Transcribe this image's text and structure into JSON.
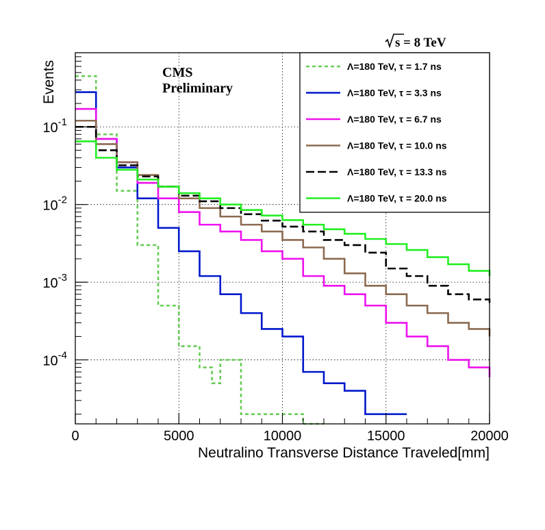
{
  "chart_data": {
    "type": "line",
    "step": true,
    "xlabel": "Neutralino Transverse Distance Traveled[mm]",
    "ylabel": "Events",
    "xlim": [
      0,
      20000
    ],
    "ylim": [
      1.5e-05,
      0.9
    ],
    "ylog": true,
    "grid": true,
    "legend_position": "top-right",
    "x_ticks": [
      "0",
      "5000",
      "10000",
      "15000",
      "20000"
    ],
    "y_ticks": [
      {
        "value": 0.1,
        "base": "10",
        "exp": "-1"
      },
      {
        "value": 0.01,
        "base": "10",
        "exp": "-2"
      },
      {
        "value": 0.001,
        "base": "10",
        "exp": "-3"
      },
      {
        "value": 0.0001,
        "base": "10",
        "exp": "-4"
      }
    ],
    "annotations": {
      "experiment": "CMS",
      "status": "Preliminary",
      "energy_sqrt": "s",
      "energy_text": " = 8 TeV"
    },
    "series": [
      {
        "name": "Λ=180 TeV, τ = 1.7 ns",
        "color": "#66cc55",
        "dash": "5,4",
        "x": [
          0,
          1000,
          2000,
          3000,
          4000,
          5000,
          6000,
          6600,
          7000,
          8000,
          9000,
          10000,
          11000
        ],
        "y": [
          0.45,
          0.08,
          0.015,
          0.003,
          0.0005,
          0.00015,
          8e-05,
          5e-05,
          0.0001,
          2e-05,
          2e-05,
          2e-05,
          1.5e-05
        ]
      },
      {
        "name": "Λ=180 TeV, τ = 3.3 ns",
        "color": "#0018cc",
        "dash": "",
        "x": [
          0,
          1000,
          2000,
          3000,
          4000,
          5000,
          6000,
          7000,
          8000,
          9000,
          10000,
          11000,
          12000,
          13000,
          14000,
          15000
        ],
        "y": [
          0.28,
          0.07,
          0.03,
          0.012,
          0.005,
          0.0025,
          0.0012,
          0.0007,
          0.0004,
          0.00025,
          0.0002,
          7e-05,
          5e-05,
          4e-05,
          2e-05,
          2e-05
        ]
      },
      {
        "name": "Λ=180 TeV, τ = 6.7 ns",
        "color": "#ee11ee",
        "dash": "",
        "x": [
          0,
          1000,
          2000,
          3000,
          4000,
          5000,
          6000,
          7000,
          8000,
          9000,
          10000,
          11000,
          12000,
          13000,
          14000,
          15000,
          16000,
          17000,
          18000,
          19000,
          20000
        ],
        "y": [
          0.17,
          0.07,
          0.035,
          0.019,
          0.012,
          0.008,
          0.0055,
          0.0045,
          0.0035,
          0.0025,
          0.002,
          0.0012,
          0.0009,
          0.0007,
          0.0005,
          0.0003,
          0.0002,
          0.00015,
          0.0001,
          8e-05,
          6e-05
        ]
      },
      {
        "name": "Λ=180 TeV, τ = 10.0 ns",
        "color": "#8b6a50",
        "dash": "",
        "x": [
          0,
          1000,
          2000,
          3000,
          4000,
          5000,
          6000,
          7000,
          8000,
          9000,
          10000,
          11000,
          12000,
          13000,
          14000,
          15000,
          16000,
          17000,
          18000,
          19000,
          20000
        ],
        "y": [
          0.12,
          0.06,
          0.035,
          0.024,
          0.017,
          0.012,
          0.009,
          0.007,
          0.0055,
          0.0045,
          0.0035,
          0.0028,
          0.002,
          0.0013,
          0.0009,
          0.0007,
          0.0005,
          0.0004,
          0.0003,
          0.00025,
          0.0002
        ]
      },
      {
        "name": "Λ=180 TeV, τ = 13.3 ns",
        "color": "#000000",
        "dash": "12,5",
        "x": [
          0,
          1000,
          2000,
          3000,
          4000,
          5000,
          6000,
          7000,
          8000,
          9000,
          10000,
          11000,
          12000,
          13000,
          14000,
          15000,
          16000,
          17000,
          18000,
          19000,
          20000
        ],
        "y": [
          0.1,
          0.05,
          0.032,
          0.023,
          0.017,
          0.013,
          0.011,
          0.009,
          0.0075,
          0.0062,
          0.0052,
          0.0045,
          0.0035,
          0.003,
          0.0024,
          0.0015,
          0.0012,
          0.0009,
          0.0007,
          0.0006,
          0.0005
        ]
      },
      {
        "name": "Λ=180 TeV, τ = 20.0 ns",
        "color": "#22ee22",
        "dash": "",
        "x": [
          0,
          1000,
          2000,
          3000,
          4000,
          5000,
          6000,
          7000,
          8000,
          9000,
          10000,
          11000,
          12000,
          13000,
          14000,
          15000,
          16000,
          17000,
          18000,
          19000,
          20000
        ],
        "y": [
          0.065,
          0.04,
          0.028,
          0.021,
          0.017,
          0.014,
          0.012,
          0.01,
          0.0085,
          0.0072,
          0.0063,
          0.0055,
          0.0048,
          0.0042,
          0.0036,
          0.0031,
          0.0026,
          0.0021,
          0.0017,
          0.0014,
          0.0012
        ]
      }
    ]
  }
}
